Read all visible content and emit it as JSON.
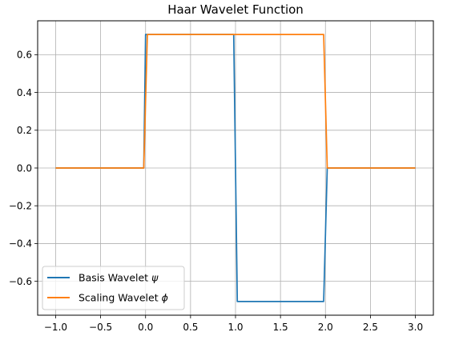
{
  "chart_data": {
    "type": "line",
    "title": "Haar Wavelet Function",
    "xlabel": "",
    "ylabel": "",
    "xlim": [
      -1.2,
      3.2
    ],
    "ylim": [
      -0.7795,
      0.7795
    ],
    "xticks": [
      -1.0,
      -0.5,
      0.0,
      0.5,
      1.0,
      1.5,
      2.0,
      2.5,
      3.0
    ],
    "xtick_labels": [
      "−1.0",
      "−0.5",
      "0.0",
      "0.5",
      "1.0",
      "1.5",
      "2.0",
      "2.5",
      "3.0"
    ],
    "yticks": [
      -0.6,
      -0.4,
      -0.2,
      0.0,
      0.2,
      0.4,
      0.6
    ],
    "ytick_labels": [
      "−0.6",
      "−0.4",
      "−0.2",
      "0.0",
      "0.2",
      "0.4",
      "0.6"
    ],
    "grid": true,
    "legend_position": "lower-left",
    "series": [
      {
        "name": "Basis Wavelet ψ",
        "name_text": "Basis Wavelet ",
        "name_symbol": "ψ",
        "color": "#1f77b4",
        "x": [
          -1.0,
          -0.02,
          0.0,
          0.98,
          1.02,
          1.98,
          2.02,
          3.0
        ],
        "y": [
          0.0,
          0.0,
          0.7071,
          0.7071,
          -0.7071,
          -0.7071,
          0.0,
          0.0
        ]
      },
      {
        "name": "Scaling Wavelet ϕ",
        "name_text": "Scaling Wavelet ",
        "name_symbol": "ϕ",
        "color": "#ff7f0e",
        "x": [
          -1.0,
          -0.02,
          0.02,
          1.98,
          2.02,
          3.0
        ],
        "y": [
          0.0,
          0.0,
          0.7071,
          0.7071,
          0.0,
          0.0
        ]
      }
    ]
  }
}
